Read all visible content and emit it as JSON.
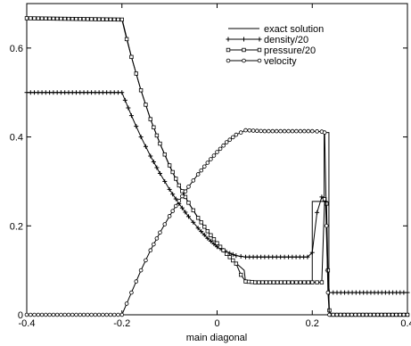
{
  "chart_data": {
    "type": "line",
    "title": "",
    "xlabel": "main diagonal",
    "ylabel": "",
    "xlim": [
      -0.4,
      0.4
    ],
    "ylim": [
      0,
      0.7
    ],
    "xticks": [
      "-0.4",
      "-0.2",
      "0",
      "0.2",
      "0.4"
    ],
    "yticks": [
      "0",
      "0.2",
      "0.4",
      "0.6"
    ],
    "grid": false,
    "legend_position": "top-right",
    "series": [
      {
        "name": "exact solution",
        "marker": "none",
        "points": [
          [
            -0.4,
            0.667
          ],
          [
            -0.2,
            0.667
          ],
          [
            -0.18,
            0.58
          ],
          [
            -0.16,
            0.505
          ],
          [
            -0.14,
            0.44
          ],
          [
            -0.12,
            0.385
          ],
          [
            -0.1,
            0.335
          ],
          [
            -0.08,
            0.29
          ],
          [
            -0.06,
            0.252
          ],
          [
            -0.04,
            0.218
          ],
          [
            -0.02,
            0.188
          ],
          [
            0.0,
            0.161
          ],
          [
            0.02,
            0.137
          ],
          [
            0.04,
            0.116
          ],
          [
            0.057,
            0.1
          ],
          [
            0.06,
            0.072
          ],
          [
            0.2,
            0.072
          ],
          [
            0.2,
            0.255
          ],
          [
            0.225,
            0.255
          ],
          [
            0.225,
            0.41
          ],
          [
            0.235,
            0.41
          ],
          [
            0.235,
            0.0
          ],
          [
            0.4,
            0.0
          ]
        ]
      },
      {
        "name": "density/20",
        "marker": "plus",
        "points": [
          [
            -0.4,
            0.5
          ],
          [
            -0.2,
            0.5
          ],
          [
            -0.18,
            0.448
          ],
          [
            -0.16,
            0.4
          ],
          [
            -0.14,
            0.357
          ],
          [
            -0.12,
            0.318
          ],
          [
            -0.1,
            0.282
          ],
          [
            -0.08,
            0.25
          ],
          [
            -0.06,
            0.221
          ],
          [
            -0.04,
            0.195
          ],
          [
            -0.02,
            0.172
          ],
          [
            0.0,
            0.153
          ],
          [
            0.02,
            0.141
          ],
          [
            0.04,
            0.133
          ],
          [
            0.06,
            0.13
          ],
          [
            0.1,
            0.13
          ],
          [
            0.15,
            0.13
          ],
          [
            0.19,
            0.13
          ],
          [
            0.2,
            0.14
          ],
          [
            0.21,
            0.23
          ],
          [
            0.22,
            0.265
          ],
          [
            0.228,
            0.255
          ],
          [
            0.232,
            0.1
          ],
          [
            0.236,
            0.05
          ],
          [
            0.3,
            0.05
          ],
          [
            0.4,
            0.05
          ]
        ]
      },
      {
        "name": "pressure/20",
        "marker": "square",
        "points": [
          [
            -0.4,
            0.667
          ],
          [
            -0.2,
            0.664
          ],
          [
            -0.19,
            0.62
          ],
          [
            -0.18,
            0.58
          ],
          [
            -0.16,
            0.505
          ],
          [
            -0.14,
            0.44
          ],
          [
            -0.12,
            0.385
          ],
          [
            -0.1,
            0.336
          ],
          [
            -0.08,
            0.291
          ],
          [
            -0.06,
            0.252
          ],
          [
            -0.04,
            0.218
          ],
          [
            -0.02,
            0.188
          ],
          [
            0.0,
            0.161
          ],
          [
            0.02,
            0.137
          ],
          [
            0.04,
            0.115
          ],
          [
            0.05,
            0.09
          ],
          [
            0.06,
            0.075
          ],
          [
            0.08,
            0.073
          ],
          [
            0.15,
            0.073
          ],
          [
            0.2,
            0.073
          ],
          [
            0.22,
            0.073
          ],
          [
            0.226,
            0.26
          ],
          [
            0.23,
            0.25
          ],
          [
            0.233,
            0.1
          ],
          [
            0.236,
            0.01
          ],
          [
            0.24,
            0.0
          ],
          [
            0.4,
            0.0
          ]
        ]
      },
      {
        "name": "velocity",
        "marker": "circle",
        "points": [
          [
            -0.4,
            0.0
          ],
          [
            -0.2,
            0.0
          ],
          [
            -0.19,
            0.025
          ],
          [
            -0.18,
            0.05
          ],
          [
            -0.16,
            0.1
          ],
          [
            -0.14,
            0.145
          ],
          [
            -0.12,
            0.185
          ],
          [
            -0.1,
            0.222
          ],
          [
            -0.08,
            0.256
          ],
          [
            -0.06,
            0.288
          ],
          [
            -0.04,
            0.316
          ],
          [
            -0.02,
            0.342
          ],
          [
            0.0,
            0.366
          ],
          [
            0.02,
            0.388
          ],
          [
            0.04,
            0.405
          ],
          [
            0.06,
            0.415
          ],
          [
            0.1,
            0.413
          ],
          [
            0.15,
            0.413
          ],
          [
            0.2,
            0.413
          ],
          [
            0.22,
            0.412
          ],
          [
            0.226,
            0.41
          ],
          [
            0.23,
            0.2
          ],
          [
            0.233,
            0.05
          ],
          [
            0.236,
            0.0
          ],
          [
            0.4,
            0.0
          ]
        ]
      }
    ]
  }
}
